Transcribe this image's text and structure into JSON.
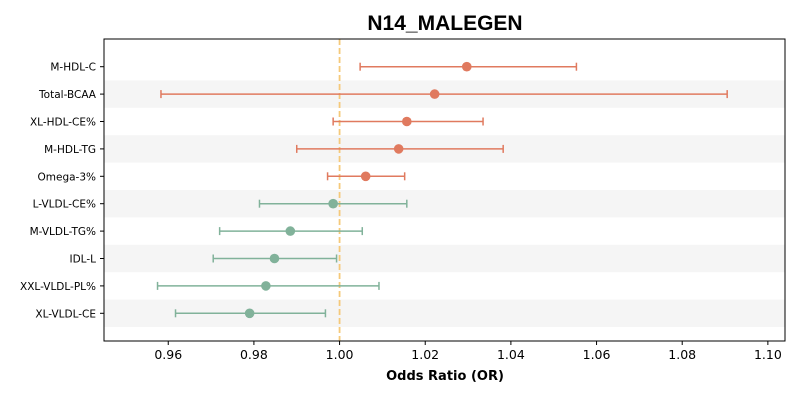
{
  "chart_data": {
    "type": "forest",
    "title": "N14_MALEGEN",
    "xlabel": "Odds Ratio (OR)",
    "ylabel": "",
    "xlim": [
      0.945,
      1.104
    ],
    "xticks": [
      0.96,
      0.98,
      1.0,
      1.02,
      1.04,
      1.06,
      1.08,
      1.1
    ],
    "xtick_labels": [
      "0.96",
      "0.98",
      "1.00",
      "1.02",
      "1.04",
      "1.06",
      "1.08",
      "1.10"
    ],
    "reference_line": 1.0,
    "reference_color": "#f5c97a",
    "grid": false,
    "colors": {
      "positive": "#e07a5f",
      "negative": "#81b29a",
      "band": "#f5f5f5"
    },
    "rows": [
      {
        "label": "M-HDL-C",
        "or": 1.0297,
        "lo": 1.0048,
        "hi": 1.0553,
        "group": "positive"
      },
      {
        "label": "Total-BCAA",
        "or": 1.0222,
        "lo": 0.9583,
        "hi": 1.0905,
        "group": "positive"
      },
      {
        "label": "XL-HDL-CE%",
        "or": 1.0157,
        "lo": 0.9985,
        "hi": 1.0335,
        "group": "positive"
      },
      {
        "label": "M-HDL-TG",
        "or": 1.0138,
        "lo": 0.99,
        "hi": 1.0382,
        "group": "positive"
      },
      {
        "label": "Omega-3%",
        "or": 1.0061,
        "lo": 0.9972,
        "hi": 1.0152,
        "group": "positive"
      },
      {
        "label": "L-VLDL-CE%",
        "or": 0.9985,
        "lo": 0.9813,
        "hi": 1.0157,
        "group": "negative"
      },
      {
        "label": "M-VLDL-TG%",
        "or": 0.9885,
        "lo": 0.972,
        "hi": 1.0053,
        "group": "negative"
      },
      {
        "label": "IDL-L",
        "or": 0.9848,
        "lo": 0.9705,
        "hi": 0.9993,
        "group": "negative"
      },
      {
        "label": "XXL-VLDL-PL%",
        "or": 0.9828,
        "lo": 0.9575,
        "hi": 1.0092,
        "group": "negative"
      },
      {
        "label": "XL-VLDL-CE",
        "or": 0.979,
        "lo": 0.9617,
        "hi": 0.9967,
        "group": "negative"
      }
    ]
  }
}
